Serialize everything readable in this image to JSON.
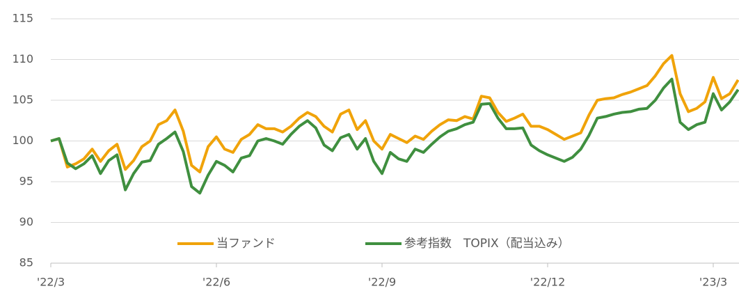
{
  "chart_data": {
    "type": "line",
    "categories": [
      "'22/3",
      null,
      null,
      null,
      null,
      null,
      null,
      null,
      null,
      null,
      null,
      null,
      null,
      null,
      null,
      null,
      null,
      null,
      null,
      null,
      "'22/6",
      null,
      null,
      null,
      null,
      null,
      null,
      null,
      null,
      null,
      null,
      null,
      null,
      null,
      null,
      null,
      null,
      null,
      null,
      null,
      "'22/9",
      null,
      null,
      null,
      null,
      null,
      null,
      null,
      null,
      null,
      null,
      null,
      null,
      null,
      null,
      null,
      null,
      null,
      null,
      null,
      "'22/12",
      null,
      null,
      null,
      null,
      null,
      null,
      null,
      null,
      null,
      null,
      null,
      null,
      null,
      null,
      null,
      null,
      null,
      null,
      null,
      "'23/3",
      null,
      null,
      null
    ],
    "series": [
      {
        "name": "当ファンド",
        "color": "#f0a30a",
        "values": [
          100,
          100.3,
          96.8,
          97.2,
          97.8,
          99,
          97.5,
          98.8,
          99.6,
          96.5,
          97.6,
          99.3,
          100,
          102,
          102.5,
          103.8,
          101.2,
          97,
          96.2,
          99.3,
          100.5,
          99,
          98.6,
          100.2,
          100.8,
          102,
          101.5,
          101.5,
          101.1,
          101.8,
          102.8,
          103.5,
          103,
          101.8,
          101.1,
          103.3,
          103.8,
          101.4,
          102.5,
          100,
          99,
          100.8,
          100.3,
          99.8,
          100.6,
          100.2,
          101.2,
          102,
          102.6,
          102.5,
          103,
          102.7,
          105.5,
          105.3,
          103.5,
          102.4,
          102.8,
          103.3,
          101.8,
          101.8,
          101.4,
          100.8,
          100.2,
          100.6,
          101,
          103.2,
          105,
          105.2,
          105.3,
          105.7,
          106,
          106.4,
          106.8,
          108,
          109.5,
          110.5,
          105.8,
          103.6,
          104,
          104.8,
          107.8,
          105.2,
          105.8,
          107.5
        ]
      },
      {
        "name": "参考指数　TOPIX（配当込み）",
        "color": "#3f8f3f",
        "values": [
          100,
          100.3,
          97.3,
          96.6,
          97.2,
          98.2,
          96,
          97.6,
          98.3,
          94,
          96,
          97.4,
          97.6,
          99.6,
          100.3,
          101.1,
          98.7,
          94.4,
          93.6,
          95.8,
          97.5,
          97,
          96.2,
          97.9,
          98.2,
          100,
          100.3,
          100,
          99.6,
          100.8,
          101.8,
          102.5,
          101.6,
          99.5,
          98.8,
          100.4,
          100.8,
          99,
          100.3,
          97.5,
          96,
          98.6,
          97.8,
          97.5,
          99,
          98.6,
          99.6,
          100.5,
          101.2,
          101.5,
          102,
          102.3,
          104.5,
          104.6,
          102.8,
          101.5,
          101.5,
          101.6,
          99.5,
          98.8,
          98.3,
          97.9,
          97.5,
          98,
          99,
          100.7,
          102.8,
          103,
          103.3,
          103.5,
          103.6,
          103.9,
          104,
          105,
          106.5,
          107.6,
          102.3,
          101.4,
          102,
          102.3,
          105.8,
          103.8,
          104.8,
          106.3
        ]
      }
    ],
    "ylim": [
      85,
      115
    ],
    "yticks": [
      85,
      90,
      95,
      100,
      105,
      110,
      115
    ],
    "grid": true,
    "legend": "bottom"
  }
}
